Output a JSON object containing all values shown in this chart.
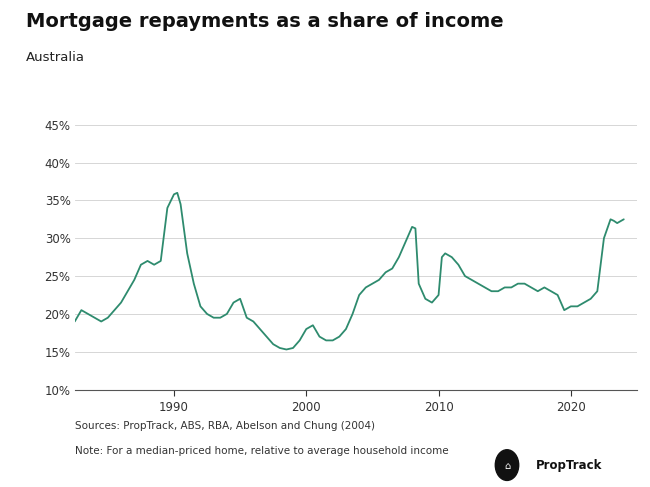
{
  "title": "Mortgage repayments as a share of income",
  "subtitle": "Australia",
  "source_line1": "Sources: PropTrack, ABS, RBA, Abelson and Chung (2004)",
  "source_line2": "Note: For a median-priced home, relative to average household income",
  "line_color": "#2e8b6e",
  "background_color": "#ffffff",
  "ylim": [
    10,
    47
  ],
  "yticks": [
    10,
    15,
    20,
    25,
    30,
    35,
    40,
    45
  ],
  "xlim": [
    1982.5,
    2025
  ],
  "xticks": [
    1990,
    2000,
    2010,
    2020
  ],
  "years": [
    1982.5,
    1983.0,
    1983.5,
    1984.0,
    1984.5,
    1985.0,
    1985.5,
    1986.0,
    1986.5,
    1987.0,
    1987.5,
    1988.0,
    1988.5,
    1989.0,
    1989.5,
    1990.0,
    1990.25,
    1990.5,
    1991.0,
    1991.5,
    1992.0,
    1992.5,
    1993.0,
    1993.5,
    1994.0,
    1994.5,
    1995.0,
    1995.5,
    1996.0,
    1996.5,
    1997.0,
    1997.5,
    1998.0,
    1998.5,
    1999.0,
    1999.5,
    2000.0,
    2000.5,
    2001.0,
    2001.5,
    2002.0,
    2002.5,
    2003.0,
    2003.5,
    2004.0,
    2004.5,
    2005.0,
    2005.5,
    2006.0,
    2006.5,
    2007.0,
    2007.5,
    2008.0,
    2008.25,
    2008.5,
    2009.0,
    2009.5,
    2010.0,
    2010.25,
    2010.5,
    2011.0,
    2011.5,
    2012.0,
    2012.5,
    2013.0,
    2013.5,
    2014.0,
    2014.5,
    2015.0,
    2015.5,
    2016.0,
    2016.5,
    2017.0,
    2017.5,
    2018.0,
    2018.5,
    2019.0,
    2019.5,
    2020.0,
    2020.5,
    2021.0,
    2021.5,
    2022.0,
    2022.5,
    2023.0,
    2023.25,
    2023.5,
    2024.0
  ],
  "values": [
    19.0,
    20.5,
    20.0,
    19.5,
    19.0,
    19.5,
    20.5,
    21.5,
    23.0,
    24.5,
    26.5,
    27.0,
    26.5,
    27.0,
    34.0,
    35.8,
    36.0,
    34.5,
    28.0,
    24.0,
    21.0,
    20.0,
    19.5,
    19.5,
    20.0,
    21.5,
    22.0,
    19.5,
    19.0,
    18.0,
    17.0,
    16.0,
    15.5,
    15.3,
    15.5,
    16.5,
    18.0,
    18.5,
    17.0,
    16.5,
    16.5,
    17.0,
    18.0,
    20.0,
    22.5,
    23.5,
    24.0,
    24.5,
    25.5,
    26.0,
    27.5,
    29.5,
    31.5,
    31.3,
    24.0,
    22.0,
    21.5,
    22.5,
    27.5,
    28.0,
    27.5,
    26.5,
    25.0,
    24.5,
    24.0,
    23.5,
    23.0,
    23.0,
    23.5,
    23.5,
    24.0,
    24.0,
    23.5,
    23.0,
    23.5,
    23.0,
    22.5,
    20.5,
    21.0,
    21.0,
    21.5,
    22.0,
    23.0,
    30.0,
    32.5,
    32.3,
    32.0,
    32.5
  ]
}
